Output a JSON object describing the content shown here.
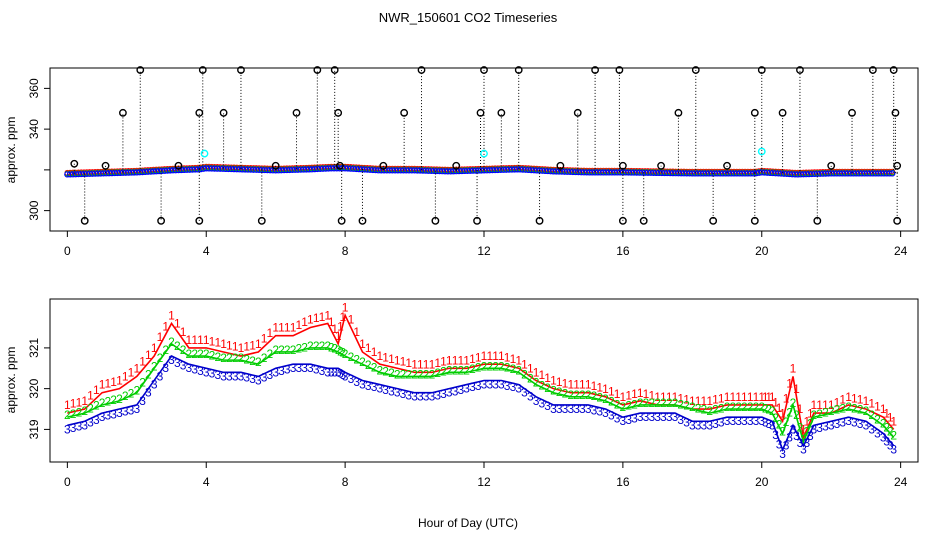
{
  "chart_data": [
    {
      "type": "scatter",
      "panel": "top",
      "title": "NWR_150601  CO2 Timeseries",
      "xlabel": "",
      "ylabel": "approx. ppm",
      "xlim": [
        -0.5,
        24.5
      ],
      "ylim": [
        290,
        370
      ],
      "x_ticks": [
        0,
        4,
        8,
        12,
        16,
        20,
        24
      ],
      "y_ticks": [
        300,
        320,
        340,
        360
      ],
      "x_tick_labels": [
        "0",
        "4",
        "8",
        "12",
        "16",
        "20",
        "24"
      ],
      "y_tick_labels": [
        "300",
        "340",
        "360"
      ],
      "baseline": {
        "x": [
          0,
          1,
          2,
          3,
          3.8,
          4,
          6,
          7,
          7.6,
          8,
          9,
          10,
          11,
          12,
          13,
          14,
          15,
          15.9,
          16,
          18,
          19.8,
          20,
          21,
          22,
          23,
          23.8
        ],
        "y": [
          318,
          318.5,
          319,
          320,
          320.5,
          321,
          320,
          320.5,
          321,
          321,
          320,
          320,
          319.5,
          320,
          320.5,
          319.5,
          319,
          319,
          319,
          318.5,
          318.5,
          319,
          318,
          318.5,
          318.5,
          318.5
        ]
      },
      "spike_highs": [
        {
          "x": 0.2,
          "y": 323
        },
        {
          "x": 1.1,
          "y": 322
        },
        {
          "x": 1.6,
          "y": 348
        },
        {
          "x": 2.1,
          "y": 369
        },
        {
          "x": 3.2,
          "y": 322
        },
        {
          "x": 3.8,
          "y": 348
        },
        {
          "x": 3.9,
          "y": 369
        },
        {
          "x": 4.5,
          "y": 348
        },
        {
          "x": 5.0,
          "y": 369
        },
        {
          "x": 6.0,
          "y": 322
        },
        {
          "x": 6.6,
          "y": 348
        },
        {
          "x": 7.2,
          "y": 369
        },
        {
          "x": 7.7,
          "y": 369
        },
        {
          "x": 7.8,
          "y": 348
        },
        {
          "x": 7.85,
          "y": 322
        },
        {
          "x": 9.1,
          "y": 322
        },
        {
          "x": 9.7,
          "y": 348
        },
        {
          "x": 10.2,
          "y": 369
        },
        {
          "x": 11.2,
          "y": 322
        },
        {
          "x": 11.9,
          "y": 348
        },
        {
          "x": 12.0,
          "y": 369
        },
        {
          "x": 12.5,
          "y": 348
        },
        {
          "x": 13.0,
          "y": 369
        },
        {
          "x": 14.2,
          "y": 322
        },
        {
          "x": 14.7,
          "y": 348
        },
        {
          "x": 15.2,
          "y": 369
        },
        {
          "x": 15.9,
          "y": 369
        },
        {
          "x": 16.0,
          "y": 322
        },
        {
          "x": 17.1,
          "y": 322
        },
        {
          "x": 17.6,
          "y": 348
        },
        {
          "x": 18.1,
          "y": 369
        },
        {
          "x": 19.0,
          "y": 322
        },
        {
          "x": 19.8,
          "y": 348
        },
        {
          "x": 20.0,
          "y": 369
        },
        {
          "x": 20.6,
          "y": 348
        },
        {
          "x": 21.1,
          "y": 369
        },
        {
          "x": 22.0,
          "y": 322
        },
        {
          "x": 22.6,
          "y": 348
        },
        {
          "x": 23.2,
          "y": 369
        },
        {
          "x": 23.8,
          "y": 369
        },
        {
          "x": 23.85,
          "y": 348
        },
        {
          "x": 23.9,
          "y": 322
        }
      ],
      "spike_lows": [
        {
          "x": 0.5,
          "y": 295
        },
        {
          "x": 2.7,
          "y": 295
        },
        {
          "x": 3.8,
          "y": 295
        },
        {
          "x": 5.6,
          "y": 295
        },
        {
          "x": 7.9,
          "y": 295
        },
        {
          "x": 8.5,
          "y": 295
        },
        {
          "x": 10.6,
          "y": 295
        },
        {
          "x": 11.8,
          "y": 295
        },
        {
          "x": 13.6,
          "y": 295
        },
        {
          "x": 16.0,
          "y": 295
        },
        {
          "x": 16.6,
          "y": 295
        },
        {
          "x": 18.6,
          "y": 295
        },
        {
          "x": 19.8,
          "y": 295
        },
        {
          "x": 21.6,
          "y": 295
        },
        {
          "x": 23.9,
          "y": 295
        }
      ],
      "cyan_points": [
        {
          "x": 3.95,
          "y": 328
        },
        {
          "x": 12.0,
          "y": 328
        },
        {
          "x": 20.0,
          "y": 329
        }
      ],
      "colors": {
        "baseline_blue": "#0000ff",
        "baseline_red": "#ff0000",
        "baseline_green": "#00cc00",
        "spike_marker": "#000000",
        "cyan_marker": "#00ffff",
        "axis": "#000000"
      }
    },
    {
      "type": "line",
      "panel": "bottom",
      "title": "",
      "xlabel": "Hour of Day (UTC)",
      "ylabel": "approx. ppm",
      "xlim": [
        -0.5,
        24.5
      ],
      "ylim": [
        318.2,
        322.2
      ],
      "x_ticks": [
        0,
        4,
        8,
        12,
        16,
        20,
        24
      ],
      "y_ticks": [
        319,
        320,
        321
      ],
      "x_tick_labels": [
        "0",
        "4",
        "8",
        "12",
        "16",
        "20",
        "24"
      ],
      "y_tick_labels": [
        "319",
        "320",
        "321"
      ],
      "x": [
        0,
        0.5,
        1,
        1.5,
        2,
        2.5,
        3,
        3.5,
        4,
        4.5,
        5,
        5.5,
        6,
        6.5,
        7,
        7.5,
        7.8,
        8,
        8.5,
        9,
        9.5,
        10,
        10.5,
        11,
        11.5,
        12,
        12.5,
        13,
        13.5,
        14,
        14.5,
        15,
        15.5,
        16,
        16.5,
        17,
        17.5,
        18,
        18.5,
        19,
        19.5,
        20,
        20.3,
        20.6,
        20.9,
        21.2,
        21.5,
        22,
        22.5,
        23,
        23.5,
        23.8
      ],
      "series": [
        {
          "name": "1",
          "color": "#ff0000",
          "marker": "1",
          "values": [
            319.4,
            319.5,
            319.9,
            320.0,
            320.3,
            320.8,
            321.6,
            321.0,
            321.0,
            320.9,
            320.8,
            320.9,
            321.3,
            321.3,
            321.5,
            321.6,
            321.1,
            321.8,
            320.9,
            320.6,
            320.5,
            320.4,
            320.4,
            320.5,
            320.5,
            320.6,
            320.6,
            320.5,
            320.2,
            320.0,
            319.9,
            319.9,
            319.8,
            319.6,
            319.7,
            319.6,
            319.6,
            319.5,
            319.5,
            319.6,
            319.6,
            319.6,
            319.6,
            319.2,
            320.3,
            318.8,
            319.4,
            319.4,
            319.6,
            319.5,
            319.3,
            319.0
          ]
        },
        {
          "name": "2",
          "color": "#00cc00",
          "marker": "2",
          "values": [
            319.3,
            319.4,
            319.6,
            319.7,
            319.9,
            320.5,
            321.1,
            320.8,
            320.8,
            320.7,
            320.7,
            320.6,
            320.9,
            320.9,
            321.0,
            321.0,
            320.9,
            320.8,
            320.6,
            320.4,
            320.3,
            320.3,
            320.3,
            320.4,
            320.4,
            320.5,
            320.5,
            320.4,
            320.1,
            319.9,
            319.8,
            319.8,
            319.7,
            319.5,
            319.6,
            319.6,
            319.6,
            319.5,
            319.4,
            319.5,
            319.5,
            319.5,
            319.4,
            318.9,
            319.6,
            318.7,
            319.3,
            319.4,
            319.5,
            319.4,
            319.1,
            318.8
          ]
        },
        {
          "name": "3",
          "color": "#0000cc",
          "marker": "3",
          "values": [
            319.1,
            319.2,
            319.4,
            319.5,
            319.6,
            320.2,
            320.8,
            320.6,
            320.5,
            320.4,
            320.4,
            320.3,
            320.5,
            320.6,
            320.6,
            320.5,
            320.5,
            320.4,
            320.2,
            320.1,
            320.0,
            319.9,
            319.9,
            320.0,
            320.1,
            320.2,
            320.2,
            320.1,
            319.8,
            319.6,
            319.6,
            319.6,
            319.5,
            319.3,
            319.4,
            319.4,
            319.4,
            319.2,
            319.2,
            319.3,
            319.3,
            319.3,
            319.2,
            318.5,
            319.1,
            318.6,
            319.1,
            319.2,
            319.3,
            319.2,
            318.9,
            318.6
          ]
        }
      ]
    }
  ]
}
